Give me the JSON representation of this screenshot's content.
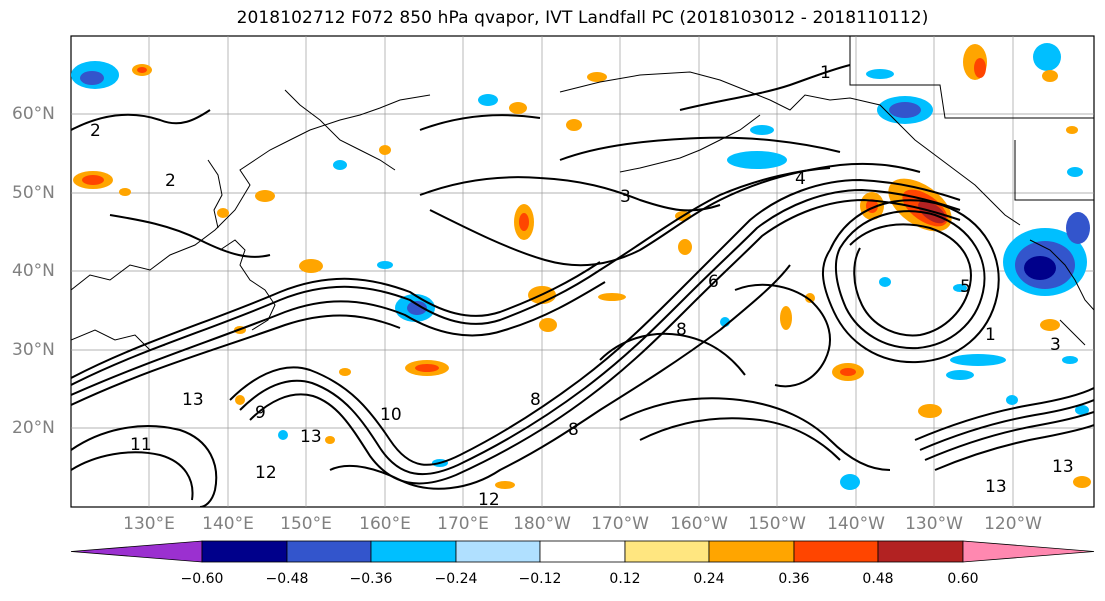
{
  "title": "2018102712 F072 850 hPa qvapor, IVT Landfall PC (2018103012 - 2018110112)",
  "lat_labels": [
    "60°N",
    "50°N",
    "40°N",
    "30°N",
    "20°N"
  ],
  "lon_labels": [
    "130°E",
    "140°E",
    "150°E",
    "160°E",
    "170°E",
    "180°W",
    "170°W",
    "160°W",
    "150°W",
    "140°W",
    "130°W",
    "120°W"
  ],
  "contour_labels": [
    "1",
    "1",
    "2",
    "2",
    "3",
    "3",
    "4",
    "5",
    "6",
    "8",
    "8",
    "8",
    "9",
    "10",
    "11",
    "12",
    "12",
    "13",
    "13",
    "13",
    "13"
  ],
  "colorbar": {
    "ticks": [
      "−0.60",
      "−0.48",
      "−0.36",
      "−0.24",
      "−0.12",
      "0.12",
      "0.24",
      "0.36",
      "0.48",
      "0.60"
    ],
    "colors": [
      "#9b30d0",
      "#00008b",
      "#3355cc",
      "#00bfff",
      "#b0e0ff",
      "#ffffff",
      "#ffe680",
      "#ffa500",
      "#ff4500",
      "#b22222",
      "#ff88b0"
    ]
  }
}
